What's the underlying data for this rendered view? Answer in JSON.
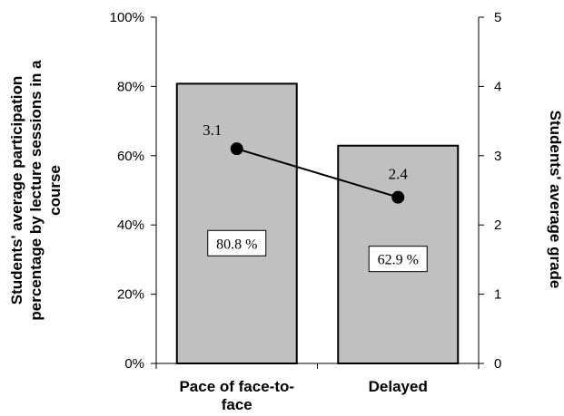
{
  "chart_data": {
    "type": "bar",
    "categories": [
      "Pace of face-to-face",
      "Delayed"
    ],
    "category_label_lines": [
      [
        "Pace of face-to-",
        "face"
      ],
      [
        "Delayed"
      ]
    ],
    "bar_series": {
      "values": [
        80.8,
        62.9
      ],
      "labels": [
        "80.8 %",
        "62.9 %"
      ],
      "color": "#c0c0c0"
    },
    "line_series": {
      "values": [
        3.1,
        2.4
      ],
      "labels": [
        "3.1",
        "2.4"
      ],
      "color": "#000000"
    },
    "ylim_left": [
      0,
      100
    ],
    "ylim_right": [
      0,
      5
    ],
    "yticks_left": [
      "0%",
      "20%",
      "40%",
      "60%",
      "80%",
      "100%"
    ],
    "yticks_right": [
      "0",
      "1",
      "2",
      "3",
      "4",
      "5"
    ],
    "ylabel_left_lines": [
      "Students' average participation",
      "percentage by lecture sessions in a",
      "course"
    ],
    "ylabel_right": "Students' average grade",
    "grid": false
  }
}
